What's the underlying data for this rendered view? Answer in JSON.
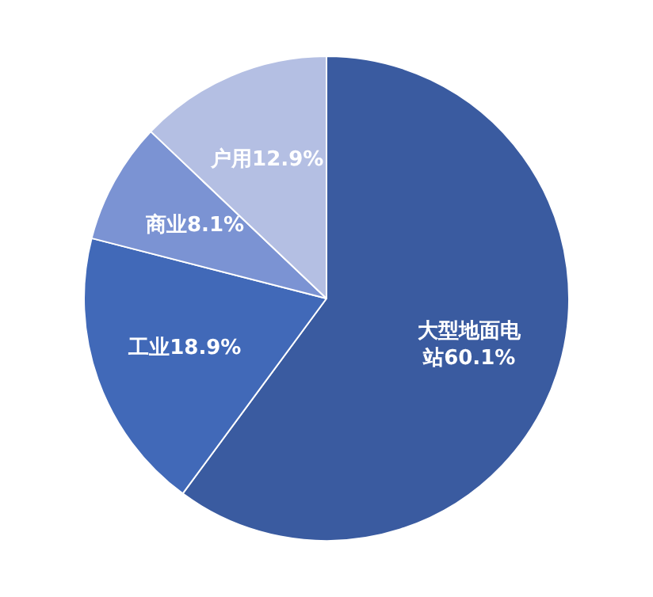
{
  "chart_data": {
    "type": "pie",
    "categories": [
      "大型地面电站",
      "工业",
      "商业",
      "户用"
    ],
    "values": [
      60.1,
      18.9,
      8.1,
      12.9
    ],
    "value_labels": [
      "60.1%",
      "18.9%",
      "8.1%",
      "12.9%"
    ],
    "colors": [
      "#3a5ba0",
      "#4169b8",
      "#7b93d3",
      "#b4bfe3"
    ],
    "legend": false
  }
}
